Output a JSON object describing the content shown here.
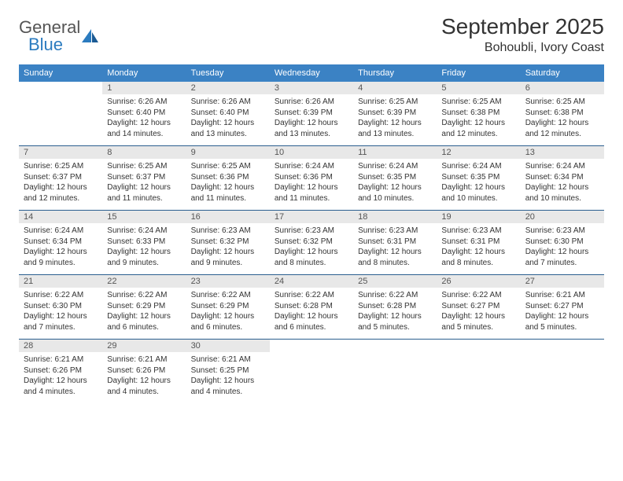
{
  "brand": {
    "line1": "General",
    "line2": "Blue"
  },
  "title": "September 2025",
  "location": "Bohoubli, Ivory Coast",
  "colors": {
    "header_bg": "#3b82c4",
    "header_text": "#ffffff",
    "daynum_bg": "#e8e8e8",
    "row_divider": "#2b5f8f",
    "brand_blue": "#2b7bbf"
  },
  "day_headers": [
    "Sunday",
    "Monday",
    "Tuesday",
    "Wednesday",
    "Thursday",
    "Friday",
    "Saturday"
  ],
  "weeks": [
    [
      {
        "n": "",
        "lines": []
      },
      {
        "n": "1",
        "lines": [
          "Sunrise: 6:26 AM",
          "Sunset: 6:40 PM",
          "Daylight: 12 hours",
          "and 14 minutes."
        ]
      },
      {
        "n": "2",
        "lines": [
          "Sunrise: 6:26 AM",
          "Sunset: 6:40 PM",
          "Daylight: 12 hours",
          "and 13 minutes."
        ]
      },
      {
        "n": "3",
        "lines": [
          "Sunrise: 6:26 AM",
          "Sunset: 6:39 PM",
          "Daylight: 12 hours",
          "and 13 minutes."
        ]
      },
      {
        "n": "4",
        "lines": [
          "Sunrise: 6:25 AM",
          "Sunset: 6:39 PM",
          "Daylight: 12 hours",
          "and 13 minutes."
        ]
      },
      {
        "n": "5",
        "lines": [
          "Sunrise: 6:25 AM",
          "Sunset: 6:38 PM",
          "Daylight: 12 hours",
          "and 12 minutes."
        ]
      },
      {
        "n": "6",
        "lines": [
          "Sunrise: 6:25 AM",
          "Sunset: 6:38 PM",
          "Daylight: 12 hours",
          "and 12 minutes."
        ]
      }
    ],
    [
      {
        "n": "7",
        "lines": [
          "Sunrise: 6:25 AM",
          "Sunset: 6:37 PM",
          "Daylight: 12 hours",
          "and 12 minutes."
        ]
      },
      {
        "n": "8",
        "lines": [
          "Sunrise: 6:25 AM",
          "Sunset: 6:37 PM",
          "Daylight: 12 hours",
          "and 11 minutes."
        ]
      },
      {
        "n": "9",
        "lines": [
          "Sunrise: 6:25 AM",
          "Sunset: 6:36 PM",
          "Daylight: 12 hours",
          "and 11 minutes."
        ]
      },
      {
        "n": "10",
        "lines": [
          "Sunrise: 6:24 AM",
          "Sunset: 6:36 PM",
          "Daylight: 12 hours",
          "and 11 minutes."
        ]
      },
      {
        "n": "11",
        "lines": [
          "Sunrise: 6:24 AM",
          "Sunset: 6:35 PM",
          "Daylight: 12 hours",
          "and 10 minutes."
        ]
      },
      {
        "n": "12",
        "lines": [
          "Sunrise: 6:24 AM",
          "Sunset: 6:35 PM",
          "Daylight: 12 hours",
          "and 10 minutes."
        ]
      },
      {
        "n": "13",
        "lines": [
          "Sunrise: 6:24 AM",
          "Sunset: 6:34 PM",
          "Daylight: 12 hours",
          "and 10 minutes."
        ]
      }
    ],
    [
      {
        "n": "14",
        "lines": [
          "Sunrise: 6:24 AM",
          "Sunset: 6:34 PM",
          "Daylight: 12 hours",
          "and 9 minutes."
        ]
      },
      {
        "n": "15",
        "lines": [
          "Sunrise: 6:24 AM",
          "Sunset: 6:33 PM",
          "Daylight: 12 hours",
          "and 9 minutes."
        ]
      },
      {
        "n": "16",
        "lines": [
          "Sunrise: 6:23 AM",
          "Sunset: 6:32 PM",
          "Daylight: 12 hours",
          "and 9 minutes."
        ]
      },
      {
        "n": "17",
        "lines": [
          "Sunrise: 6:23 AM",
          "Sunset: 6:32 PM",
          "Daylight: 12 hours",
          "and 8 minutes."
        ]
      },
      {
        "n": "18",
        "lines": [
          "Sunrise: 6:23 AM",
          "Sunset: 6:31 PM",
          "Daylight: 12 hours",
          "and 8 minutes."
        ]
      },
      {
        "n": "19",
        "lines": [
          "Sunrise: 6:23 AM",
          "Sunset: 6:31 PM",
          "Daylight: 12 hours",
          "and 8 minutes."
        ]
      },
      {
        "n": "20",
        "lines": [
          "Sunrise: 6:23 AM",
          "Sunset: 6:30 PM",
          "Daylight: 12 hours",
          "and 7 minutes."
        ]
      }
    ],
    [
      {
        "n": "21",
        "lines": [
          "Sunrise: 6:22 AM",
          "Sunset: 6:30 PM",
          "Daylight: 12 hours",
          "and 7 minutes."
        ]
      },
      {
        "n": "22",
        "lines": [
          "Sunrise: 6:22 AM",
          "Sunset: 6:29 PM",
          "Daylight: 12 hours",
          "and 6 minutes."
        ]
      },
      {
        "n": "23",
        "lines": [
          "Sunrise: 6:22 AM",
          "Sunset: 6:29 PM",
          "Daylight: 12 hours",
          "and 6 minutes."
        ]
      },
      {
        "n": "24",
        "lines": [
          "Sunrise: 6:22 AM",
          "Sunset: 6:28 PM",
          "Daylight: 12 hours",
          "and 6 minutes."
        ]
      },
      {
        "n": "25",
        "lines": [
          "Sunrise: 6:22 AM",
          "Sunset: 6:28 PM",
          "Daylight: 12 hours",
          "and 5 minutes."
        ]
      },
      {
        "n": "26",
        "lines": [
          "Sunrise: 6:22 AM",
          "Sunset: 6:27 PM",
          "Daylight: 12 hours",
          "and 5 minutes."
        ]
      },
      {
        "n": "27",
        "lines": [
          "Sunrise: 6:21 AM",
          "Sunset: 6:27 PM",
          "Daylight: 12 hours",
          "and 5 minutes."
        ]
      }
    ],
    [
      {
        "n": "28",
        "lines": [
          "Sunrise: 6:21 AM",
          "Sunset: 6:26 PM",
          "Daylight: 12 hours",
          "and 4 minutes."
        ]
      },
      {
        "n": "29",
        "lines": [
          "Sunrise: 6:21 AM",
          "Sunset: 6:26 PM",
          "Daylight: 12 hours",
          "and 4 minutes."
        ]
      },
      {
        "n": "30",
        "lines": [
          "Sunrise: 6:21 AM",
          "Sunset: 6:25 PM",
          "Daylight: 12 hours",
          "and 4 minutes."
        ]
      },
      {
        "n": "",
        "lines": []
      },
      {
        "n": "",
        "lines": []
      },
      {
        "n": "",
        "lines": []
      },
      {
        "n": "",
        "lines": []
      }
    ]
  ]
}
